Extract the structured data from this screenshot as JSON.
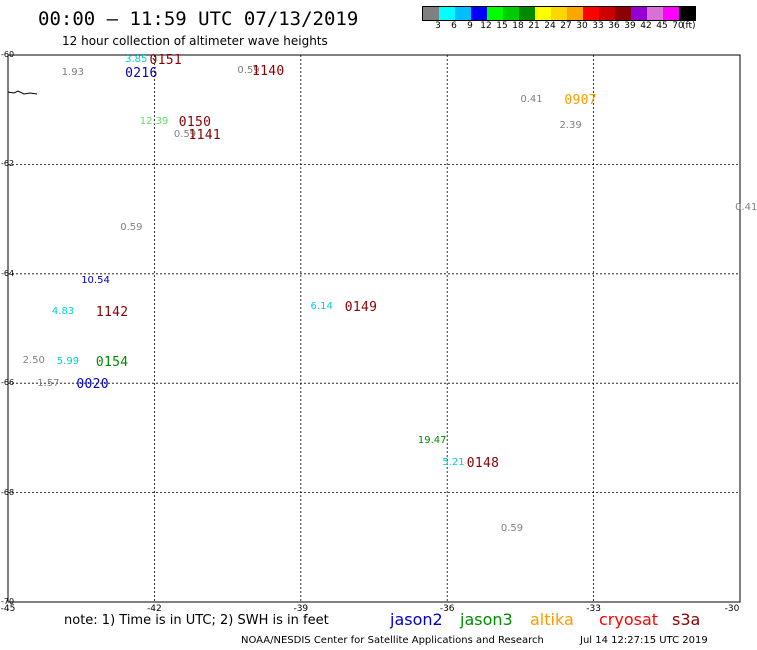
{
  "title": "00:00 – 11:59 UTC 07/13/2019",
  "subtitle": "12 hour collection of altimeter wave heights",
  "legend": {
    "colors": [
      "#808080",
      "#00ffff",
      "#00bfff",
      "#0000ff",
      "#00ff00",
      "#00cd00",
      "#008b00",
      "#ffff00",
      "#ffd700",
      "#ffa500",
      "#ff0000",
      "#cd0000",
      "#8b0000",
      "#9400d3",
      "#da70d6",
      "#ff00ff",
      "#000000"
    ],
    "labels": [
      "3",
      "6",
      "9",
      "12",
      "15",
      "18",
      "21",
      "24",
      "27",
      "30",
      "33",
      "36",
      "39",
      "42",
      "45",
      "70"
    ],
    "unit": "(ft)"
  },
  "axes": {
    "lat_ticks": [
      "-60",
      "-62",
      "-64",
      "-66",
      "-68",
      "-70"
    ],
    "lon_ticks": [
      "-45",
      "-42",
      "-39",
      "-36",
      "-33",
      "-30"
    ],
    "lon_range": [
      -45,
      -30
    ],
    "lat_range": [
      -70,
      -60
    ]
  },
  "observations": [
    {
      "value": "3.85",
      "color": "#00d0d0",
      "lon": -42.6,
      "lat": -60.1
    },
    {
      "value": "1.93",
      "color": "#808080",
      "lon": -43.9,
      "lat": -60.33
    },
    {
      "value": "0.59",
      "color": "#808080",
      "lon": -40.3,
      "lat": -60.3
    },
    {
      "value": "0.41",
      "color": "#808080",
      "lon": -34.5,
      "lat": -60.82
    },
    {
      "value": "12.39",
      "color": "#66dd66",
      "lon": -42.3,
      "lat": -61.22
    },
    {
      "value": "0.59",
      "color": "#808080",
      "lon": -41.6,
      "lat": -61.46
    },
    {
      "value": "2.39",
      "color": "#808080",
      "lon": -33.7,
      "lat": -61.29
    },
    {
      "value": "0.41",
      "color": "#808080",
      "lon": -30.1,
      "lat": -62.8
    },
    {
      "value": "0.59",
      "color": "#808080",
      "lon": -42.7,
      "lat": -63.17
    },
    {
      "value": "10.54",
      "color": "#0000cd",
      "lon": -43.5,
      "lat": -64.13
    },
    {
      "value": "4.83",
      "color": "#00d0d0",
      "lon": -44.1,
      "lat": -64.7
    },
    {
      "value": "6.14",
      "color": "#00d0d0",
      "lon": -38.8,
      "lat": -64.6
    },
    {
      "value": "2.50",
      "color": "#808080",
      "lon": -44.7,
      "lat": -65.6
    },
    {
      "value": "5.99",
      "color": "#00d0d0",
      "lon": -44.0,
      "lat": -65.62
    },
    {
      "value": "1.57",
      "color": "#808080",
      "lon": -44.4,
      "lat": -66.02
    },
    {
      "value": "19.47",
      "color": "#008b00",
      "lon": -36.6,
      "lat": -67.05
    },
    {
      "value": "5.21",
      "color": "#00d0d0",
      "lon": -36.1,
      "lat": -67.45
    },
    {
      "value": "0.59",
      "color": "#808080",
      "lon": -34.9,
      "lat": -68.67
    }
  ],
  "passes": [
    {
      "time": "0151",
      "color": "#8b0000",
      "lon": -42.1,
      "lat": -60.1
    },
    {
      "time": "0216",
      "color": "#0000cd",
      "lon": -42.6,
      "lat": -60.33
    },
    {
      "time": "1140",
      "color": "#8b0000",
      "lon": -40.0,
      "lat": -60.3
    },
    {
      "time": "0907",
      "color": "#ff9900",
      "lon": -33.6,
      "lat": -60.82
    },
    {
      "time": "0150",
      "color": "#8b0000",
      "lon": -41.5,
      "lat": -61.22
    },
    {
      "time": "1141",
      "color": "#8b0000",
      "lon": -41.3,
      "lat": -61.46
    },
    {
      "time": "1142",
      "color": "#8b0000",
      "lon": -43.2,
      "lat": -64.7
    },
    {
      "time": "0149",
      "color": "#8b0000",
      "lon": -38.1,
      "lat": -64.6
    },
    {
      "time": "0154",
      "color": "#008b00",
      "lon": -43.2,
      "lat": -65.62
    },
    {
      "time": "0020",
      "color": "#0000cd",
      "lon": -43.6,
      "lat": -66.02
    },
    {
      "time": "0148",
      "color": "#8b0000",
      "lon": -35.6,
      "lat": -67.45
    }
  ],
  "note": "note: 1) Time is in UTC; 2) SWH is in feet",
  "satellites": [
    {
      "name": "jason2",
      "color": "#0000cd"
    },
    {
      "name": "jason3",
      "color": "#008b00"
    },
    {
      "name": "altika",
      "color": "#ff9900"
    },
    {
      "name": "cryosat",
      "color": "#ff0000"
    },
    {
      "name": "s3a",
      "color": "#8b0000"
    }
  ],
  "credit": "NOAA/NESDIS Center for Satellite Applications and Research",
  "timestamp": "Jul 14 12:27:15 UTC 2019"
}
